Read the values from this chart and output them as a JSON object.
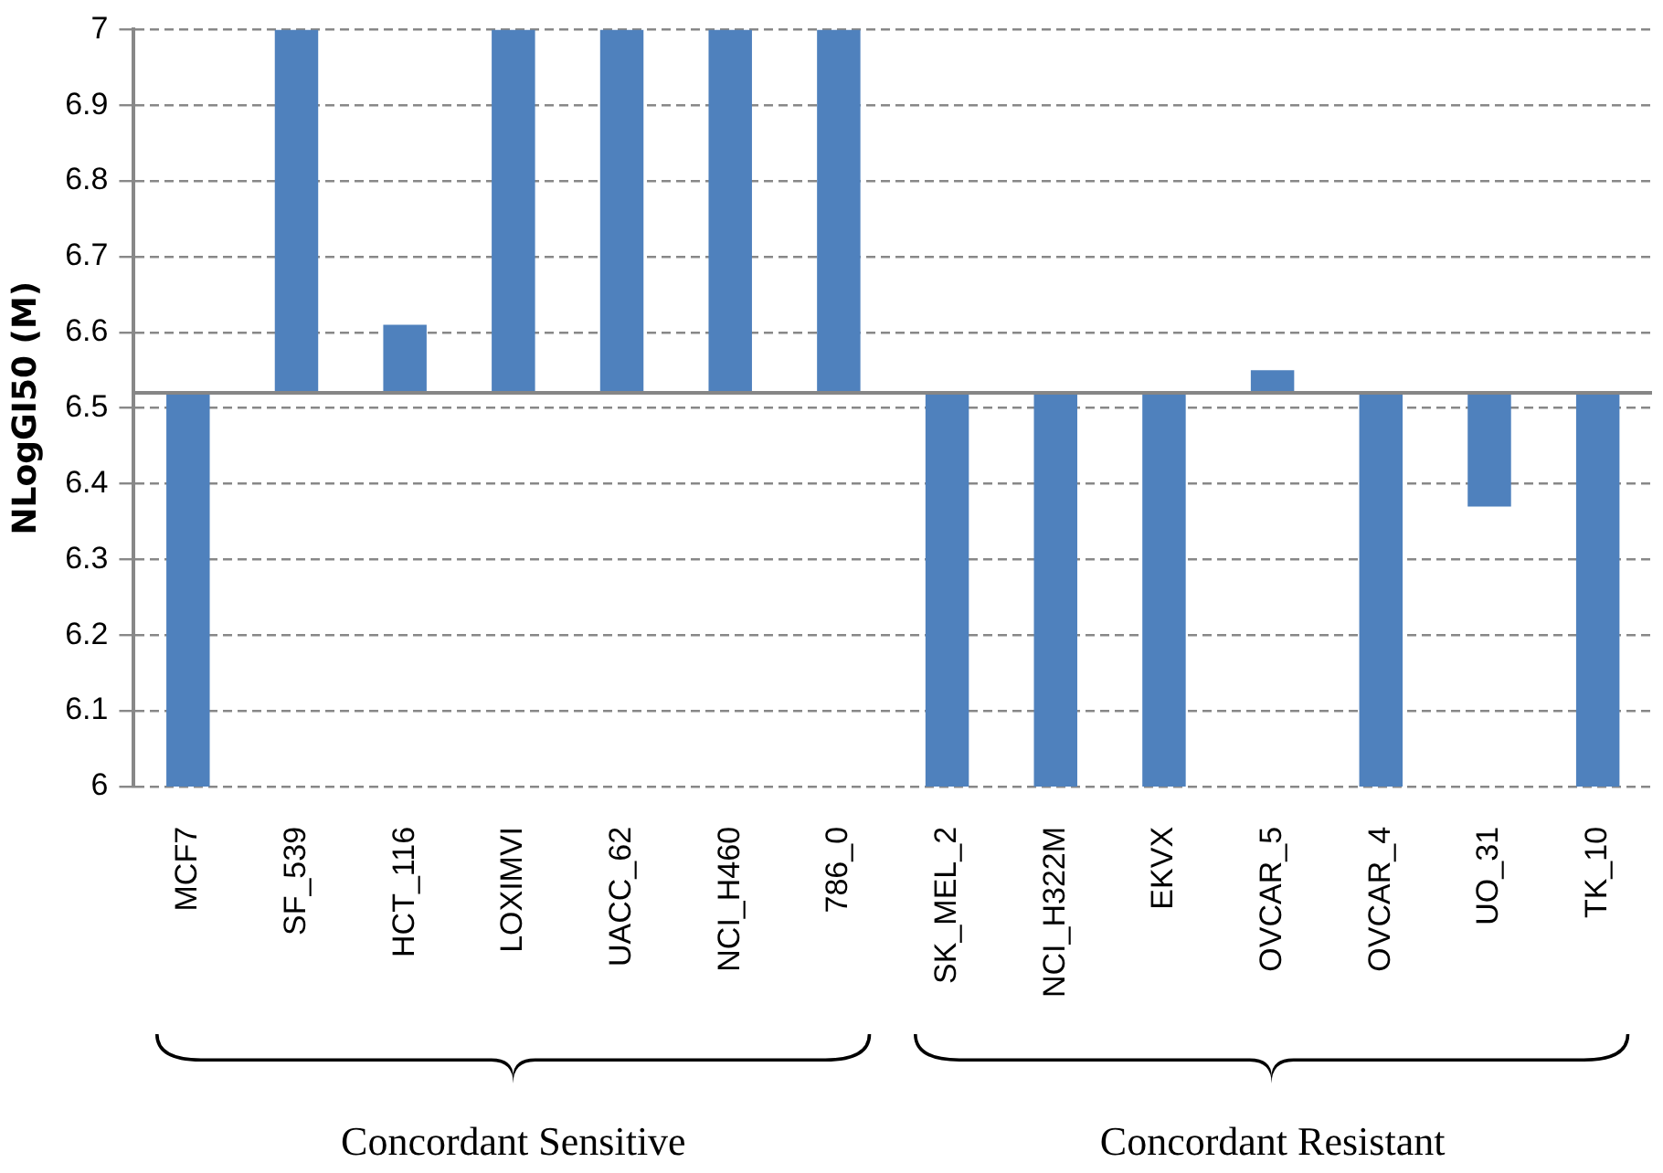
{
  "chart_data": {
    "type": "bar",
    "ylabel": "NLogGI50 (M)",
    "categories": [
      "MCF7",
      "SF_539",
      "HCT_116",
      "LOXIMVI",
      "UACC_62",
      "NCI_H460",
      "786_0",
      "SK_MEL_2",
      "NCI_H322M",
      "EKVX",
      "OVCAR_5",
      "OVCAR_4",
      "UO_31",
      "TK_10"
    ],
    "base": [
      6.52,
      6.52,
      6.52,
      6.52,
      6.52,
      6.52,
      6.52,
      6.52,
      6.52,
      6.52,
      6.52,
      6.52,
      6.52,
      6.52
    ],
    "values": [
      -0.52,
      0.48,
      0.09,
      0.48,
      0.48,
      0.48,
      0.48,
      -0.52,
      -0.52,
      -0.52,
      0.03,
      -0.52,
      -0.15,
      -0.52
    ],
    "color": "#4f81bd",
    "ylim": [
      6,
      7
    ],
    "yticks": [
      {
        "value": 6,
        "label": "6"
      },
      6.1,
      6.2,
      6.3,
      6.4,
      6.5,
      6.6,
      6.7,
      6.8,
      6.9,
      {
        "value": 7,
        "label": "7"
      }
    ],
    "grid": "y",
    "ref_lines": [
      {
        "axis": "y",
        "value": 6.52,
        "color": "#868686"
      }
    ],
    "annotations": [
      "Concordant Sensitive",
      "Concordant Resistant"
    ]
  }
}
